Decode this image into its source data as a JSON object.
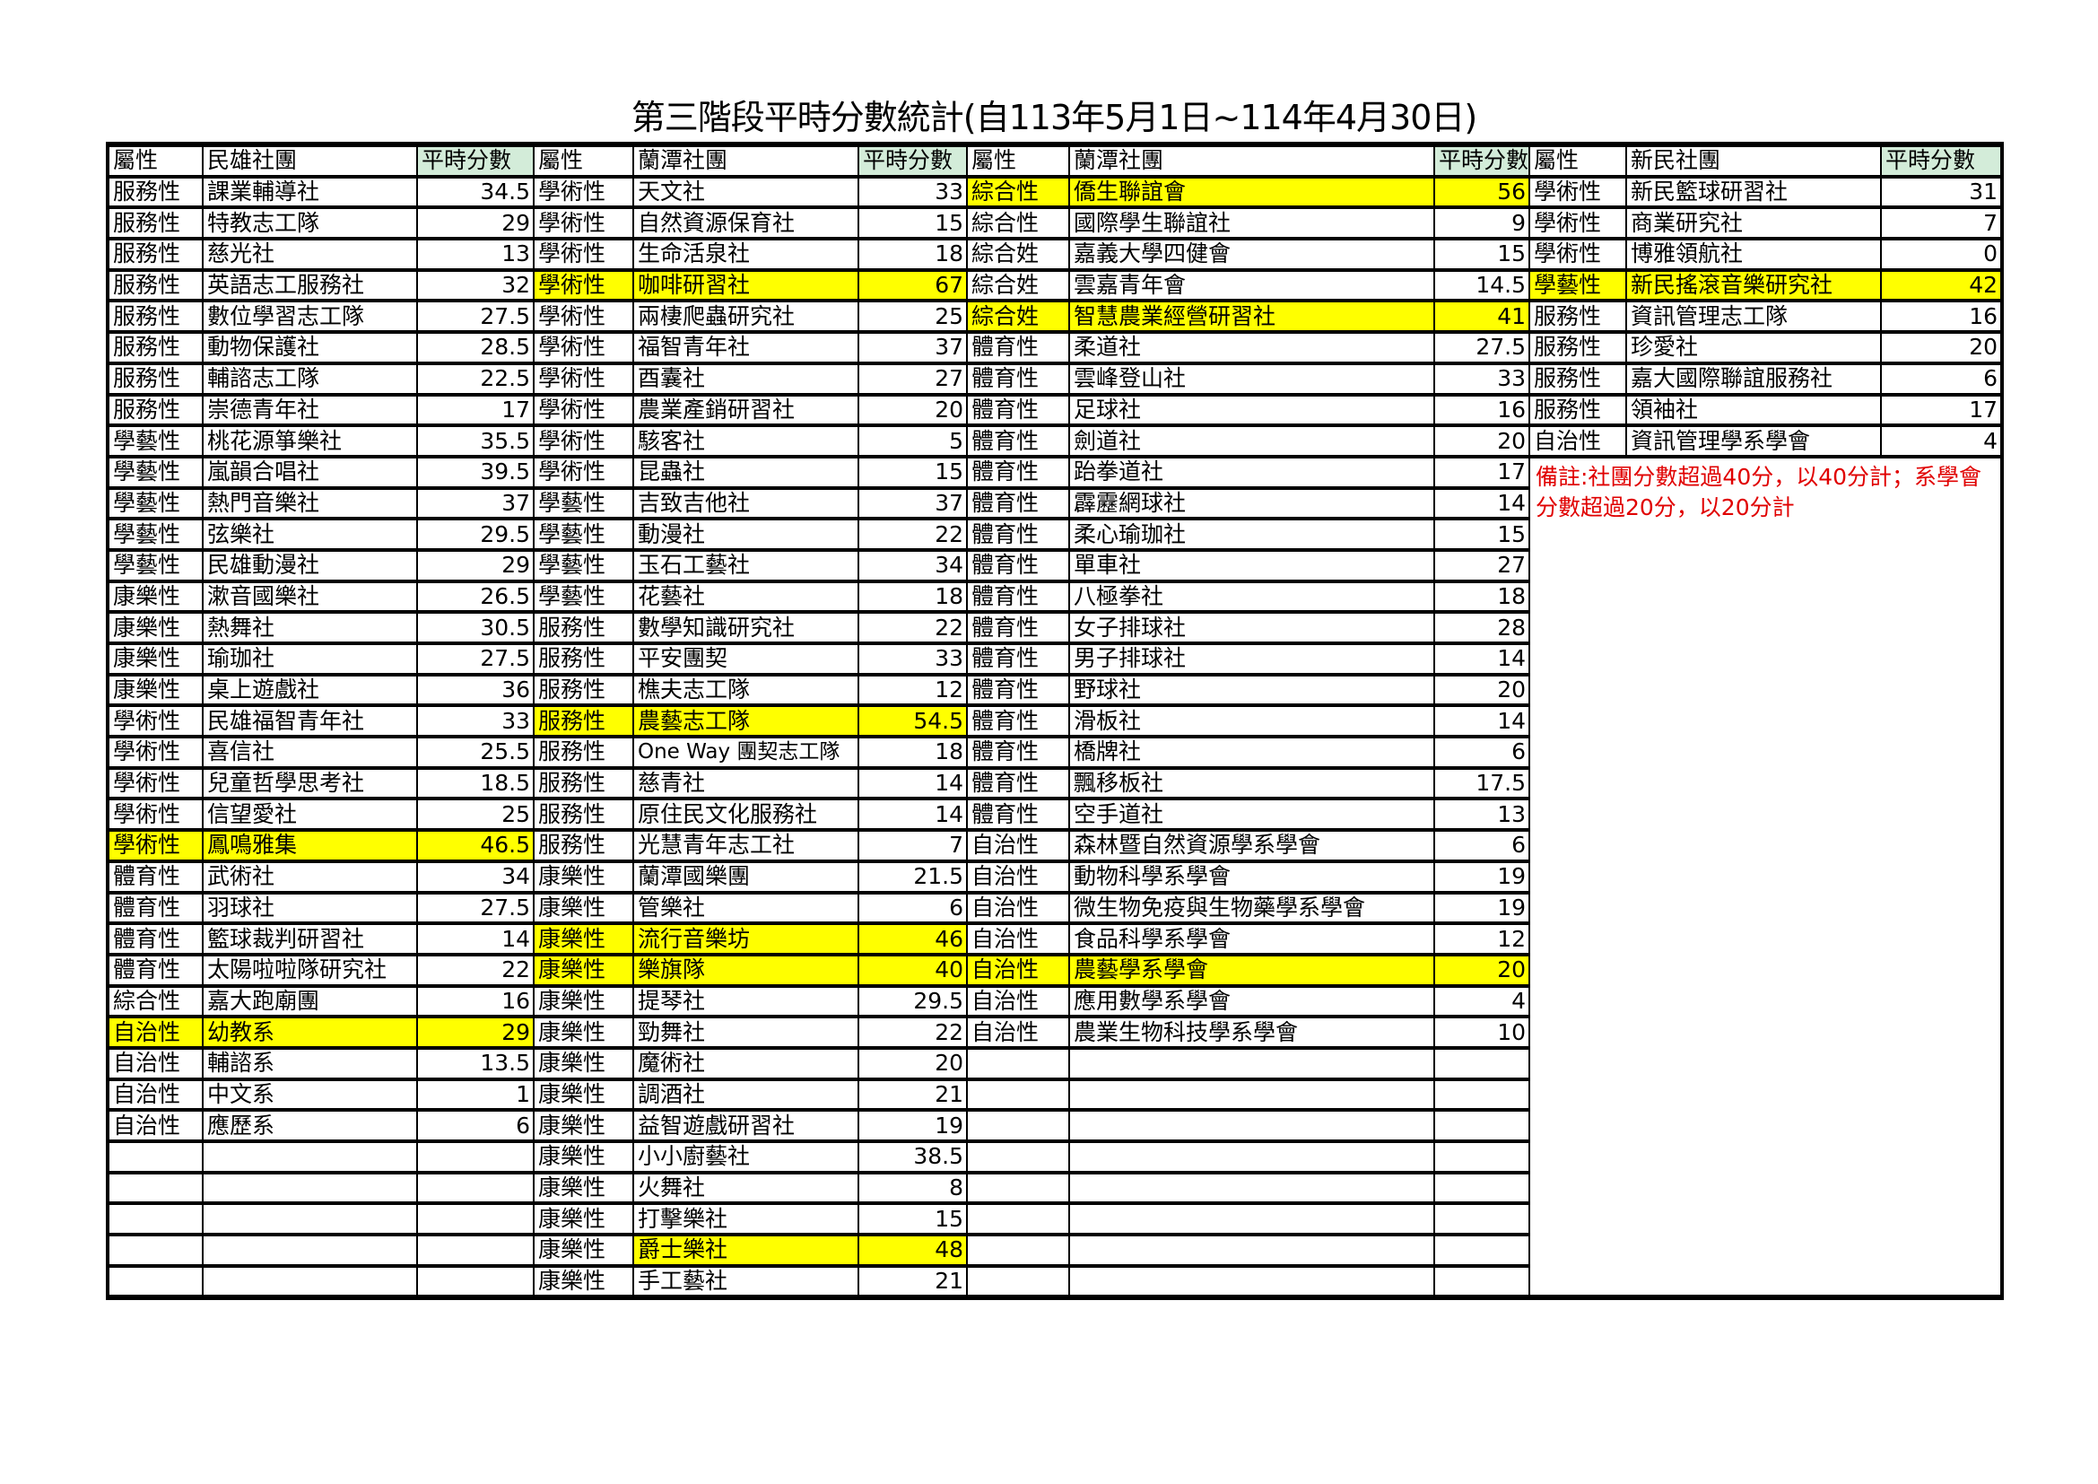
{
  "title": "第三階段平時分數統計(自113年5月1日~114年4月30日)",
  "colors": {
    "highlight": "#ffff00",
    "score_header_bg": "#d3ecd9",
    "note_text": "#e00000"
  },
  "groups": [
    {
      "header": {
        "category": "屬性",
        "name": "民雄社團",
        "score": "平時分數"
      },
      "rows": [
        {
          "category": "服務性",
          "name": "課業輔導社",
          "score": "34.5"
        },
        {
          "category": "服務性",
          "name": "特教志工隊",
          "score": "29"
        },
        {
          "category": "服務性",
          "name": "慈光社",
          "score": "13"
        },
        {
          "category": "服務性",
          "name": "英語志工服務社",
          "score": "32"
        },
        {
          "category": "服務性",
          "name": "數位學習志工隊",
          "score": "27.5"
        },
        {
          "category": "服務性",
          "name": "動物保護社",
          "score": "28.5"
        },
        {
          "category": "服務性",
          "name": "輔諮志工隊",
          "score": "22.5"
        },
        {
          "category": "服務性",
          "name": "崇德青年社",
          "score": "17"
        },
        {
          "category": "學藝性",
          "name": "桃花源箏樂社",
          "score": "35.5"
        },
        {
          "category": "學藝性",
          "name": "嵐韻合唱社",
          "score": "39.5"
        },
        {
          "category": "學藝性",
          "name": "熱門音樂社",
          "score": "37"
        },
        {
          "category": "學藝性",
          "name": "弦樂社",
          "score": "29.5"
        },
        {
          "category": "學藝性",
          "name": "民雄動漫社",
          "score": "29"
        },
        {
          "category": "康樂性",
          "name": "漱音國樂社",
          "score": "26.5"
        },
        {
          "category": "康樂性",
          "name": "熱舞社",
          "score": "30.5"
        },
        {
          "category": "康樂性",
          "name": "瑜珈社",
          "score": "27.5"
        },
        {
          "category": "康樂性",
          "name": "桌上遊戲社",
          "score": "36"
        },
        {
          "category": "學術性",
          "name": "民雄福智青年社",
          "score": "33"
        },
        {
          "category": "學術性",
          "name": "喜信社",
          "score": "25.5"
        },
        {
          "category": "學術性",
          "name": "兒童哲學思考社",
          "score": "18.5"
        },
        {
          "category": "學術性",
          "name": "信望愛社",
          "score": "25"
        },
        {
          "category": "學術性",
          "name": "鳳鳴雅集",
          "score": "46.5",
          "highlight": "row"
        },
        {
          "category": "體育性",
          "name": "武術社",
          "score": "34"
        },
        {
          "category": "體育性",
          "name": "羽球社",
          "score": "27.5"
        },
        {
          "category": "體育性",
          "name": "籃球裁判研習社",
          "score": "14"
        },
        {
          "category": "體育性",
          "name": "太陽啦啦隊研究社",
          "score": "22"
        },
        {
          "category": "綜合性",
          "name": "嘉大跑廟團",
          "score": "16"
        },
        {
          "category": "自治性",
          "name": "幼教系",
          "score": "29",
          "highlight": "row"
        },
        {
          "category": "自治性",
          "name": "輔諮系",
          "score": "13.5"
        },
        {
          "category": "自治性",
          "name": "中文系",
          "score": "1"
        },
        {
          "category": "自治性",
          "name": "應歷系",
          "score": "6"
        }
      ]
    },
    {
      "header": {
        "category": "屬性",
        "name": "蘭潭社團",
        "score": "平時分數"
      },
      "rows": [
        {
          "category": "學術性",
          "name": "天文社",
          "score": "33"
        },
        {
          "category": "學術性",
          "name": "自然資源保育社",
          "score": "15"
        },
        {
          "category": "學術性",
          "name": "生命活泉社",
          "score": "18"
        },
        {
          "category": "學術性",
          "name": "咖啡研習社",
          "score": "67",
          "highlight": "row"
        },
        {
          "category": "學術性",
          "name": "兩棲爬蟲研究社",
          "score": "25"
        },
        {
          "category": "學術性",
          "name": "福智青年社",
          "score": "37"
        },
        {
          "category": "學術性",
          "name": "酉囊社",
          "score": "27"
        },
        {
          "category": "學術性",
          "name": "農業產銷研習社",
          "score": "20"
        },
        {
          "category": "學術性",
          "name": "駭客社",
          "score": "5"
        },
        {
          "category": "學術性",
          "name": "昆蟲社",
          "score": "15"
        },
        {
          "category": "學藝性",
          "name": "吉致吉他社",
          "score": "37"
        },
        {
          "category": "學藝性",
          "name": "動漫社",
          "score": "22"
        },
        {
          "category": "學藝性",
          "name": "玉石工藝社",
          "score": "34"
        },
        {
          "category": "學藝性",
          "name": "花藝社",
          "score": "18"
        },
        {
          "category": "服務性",
          "name": "數學知識研究社",
          "score": "22"
        },
        {
          "category": "服務性",
          "name": "平安團契",
          "score": "33"
        },
        {
          "category": "服務性",
          "name": "樵夫志工隊",
          "score": "12"
        },
        {
          "category": "服務性",
          "name": "農藝志工隊",
          "score": "54.5",
          "highlight": "row"
        },
        {
          "category": "服務性",
          "name": "One Way 團契志工隊",
          "score": "18"
        },
        {
          "category": "服務性",
          "name": "慈青社",
          "score": "14"
        },
        {
          "category": "服務性",
          "name": "原住民文化服務社",
          "score": "14"
        },
        {
          "category": "服務性",
          "name": "光慧青年志工社",
          "score": "7"
        },
        {
          "category": "康樂性",
          "name": "蘭潭國樂團",
          "score": "21.5"
        },
        {
          "category": "康樂性",
          "name": "管樂社",
          "score": "6"
        },
        {
          "category": "康樂性",
          "name": "流行音樂坊",
          "score": "46",
          "highlight": "row"
        },
        {
          "category": "康樂性",
          "name": "樂旗隊",
          "score": "40",
          "highlight": "row"
        },
        {
          "category": "康樂性",
          "name": "提琴社",
          "score": "29.5"
        },
        {
          "category": "康樂性",
          "name": "勁舞社",
          "score": "22"
        },
        {
          "category": "康樂性",
          "name": "魔術社",
          "score": "20"
        },
        {
          "category": "康樂性",
          "name": "調酒社",
          "score": "21"
        },
        {
          "category": "康樂性",
          "name": "益智遊戲研習社",
          "score": "19"
        },
        {
          "category": "康樂性",
          "name": "小小廚藝社",
          "score": "38.5"
        },
        {
          "category": "康樂性",
          "name": "火舞社",
          "score": "8"
        },
        {
          "category": "康樂性",
          "name": "打擊樂社",
          "score": "15"
        },
        {
          "category": "康樂性",
          "name": "爵士樂社",
          "score": "48",
          "highlight": "name"
        },
        {
          "category": "康樂性",
          "name": "手工藝社",
          "score": "21"
        }
      ]
    },
    {
      "header": {
        "category": "屬性",
        "name": "蘭潭社團",
        "score": "平時分數"
      },
      "rows": [
        {
          "category": "綜合性",
          "name": "僑生聯誼會",
          "score": "56",
          "highlight": "row"
        },
        {
          "category": "綜合性",
          "name": "國際學生聯誼社",
          "score": "9"
        },
        {
          "category": "綜合姓",
          "name": "嘉義大學四健會",
          "score": "15"
        },
        {
          "category": "綜合姓",
          "name": "雲嘉青年會",
          "score": "14.5"
        },
        {
          "category": "綜合姓",
          "name": "智慧農業經營研習社",
          "score": "41",
          "highlight": "row"
        },
        {
          "category": "體育性",
          "name": "柔道社",
          "score": "27.5"
        },
        {
          "category": "體育性",
          "name": "雲峰登山社",
          "score": "33"
        },
        {
          "category": "體育性",
          "name": "足球社",
          "score": "16"
        },
        {
          "category": "體育性",
          "name": "劍道社",
          "score": "20"
        },
        {
          "category": "體育性",
          "name": "跆拳道社",
          "score": "17"
        },
        {
          "category": "體育性",
          "name": "霹靂網球社",
          "score": "14"
        },
        {
          "category": "體育性",
          "name": "柔心瑜珈社",
          "score": "15"
        },
        {
          "category": "體育性",
          "name": "單車社",
          "score": "27"
        },
        {
          "category": "體育性",
          "name": "八極拳社",
          "score": "18"
        },
        {
          "category": "體育性",
          "name": "女子排球社",
          "score": "28"
        },
        {
          "category": "體育性",
          "name": "男子排球社",
          "score": "14"
        },
        {
          "category": "體育性",
          "name": "野球社",
          "score": "20"
        },
        {
          "category": "體育性",
          "name": "滑板社",
          "score": "14"
        },
        {
          "category": "體育性",
          "name": "橋牌社",
          "score": "6"
        },
        {
          "category": "體育性",
          "name": "飄移板社",
          "score": "17.5"
        },
        {
          "category": "體育性",
          "name": "空手道社",
          "score": "13"
        },
        {
          "category": "自治性",
          "name": "森林暨自然資源學系學會",
          "score": "6"
        },
        {
          "category": "自治性",
          "name": "動物科學系學會",
          "score": "19"
        },
        {
          "category": "自治性",
          "name": "微生物免疫與生物藥學系學會",
          "score": "19"
        },
        {
          "category": "自治性",
          "name": "食品科學系學會",
          "score": "12"
        },
        {
          "category": "自治性",
          "name": "農藝學系學會",
          "score": "20",
          "highlight": "row"
        },
        {
          "category": "自治性",
          "name": "應用數學系學會",
          "score": "4"
        },
        {
          "category": "自治性",
          "name": "農業生物科技學系學會",
          "score": "10"
        }
      ]
    },
    {
      "header": {
        "category": "屬性",
        "name": "新民社團",
        "score": "平時分數"
      },
      "rows": [
        {
          "category": "學術性",
          "name": "新民籃球研習社",
          "score": "31"
        },
        {
          "category": "學術性",
          "name": "商業研究社",
          "score": "7"
        },
        {
          "category": "學術性",
          "name": "博雅領航社",
          "score": "0"
        },
        {
          "category": "學藝性",
          "name": "新民搖滾音樂研究社",
          "score": "42",
          "highlight": "row"
        },
        {
          "category": "服務性",
          "name": "資訊管理志工隊",
          "score": "16"
        },
        {
          "category": "服務性",
          "name": "珍愛社",
          "score": "20"
        },
        {
          "category": "服務性",
          "name": "嘉大國際聯誼服務社",
          "score": "6"
        },
        {
          "category": "服務性",
          "name": "領袖社",
          "score": "17"
        },
        {
          "category": "自治性",
          "name": "資訊管理學系學會",
          "score": "4"
        }
      ]
    }
  ],
  "note": "備註:社團分數超過40分，以40分計；系學會分數超過20分，以20分計"
}
